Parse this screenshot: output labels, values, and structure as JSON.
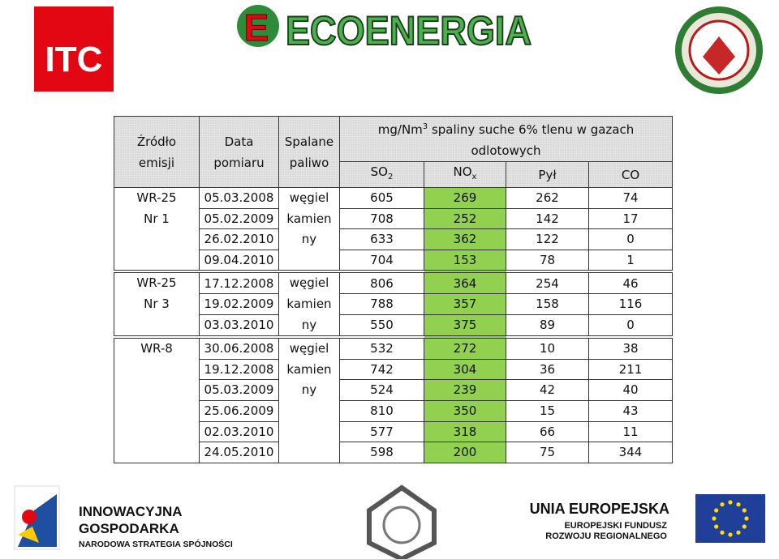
{
  "logos": {
    "itc": "ITC",
    "ecoenergia": "ECOENERGIA",
    "innowacyjna": [
      "INNOWACYJNA",
      "GOSPODARKA",
      "NARODOWA STRATEGIA SPÓJNOŚCI"
    ],
    "unia": [
      "UNIA EUROPEJSKA",
      "EUROPEJSKI FUNDUSZ",
      "ROZWOJU REGIONALNEGO"
    ]
  },
  "table": {
    "header": {
      "columns": [
        [
          "Źródło",
          "emisji"
        ],
        [
          "Data",
          "pomiaru"
        ],
        [
          "Spalane",
          "paliwo"
        ]
      ],
      "unit": {
        "text": "mg/Nm",
        "sup": "3",
        "rest": "spaliny suche 6% tlenu w gazach",
        "line2": "odlotowych"
      },
      "pollutants": [
        {
          "text": "SO",
          "sub": "2"
        },
        {
          "text": "NO",
          "sub": "x"
        },
        {
          "text": "Pył"
        },
        {
          "text": "CO"
        }
      ]
    },
    "groups": [
      {
        "source": [
          "WR-25",
          "Nr 1"
        ],
        "fuel": [
          "węgiel",
          "kamien",
          "ny"
        ],
        "rows": [
          {
            "date": "05.03.2008",
            "values": [
              605,
              269,
              262,
              74
            ]
          },
          {
            "date": "05.02.2009",
            "values": [
              708,
              252,
              142,
              17
            ]
          },
          {
            "date": "26.02.2010",
            "values": [
              633,
              362,
              122,
              0
            ]
          },
          {
            "date": "09.04.2010",
            "values": [
              704,
              153,
              78,
              1
            ]
          }
        ]
      },
      {
        "source": [
          "WR-25",
          "Nr 3"
        ],
        "fuel": [
          "węgiel",
          "kamien",
          "ny"
        ],
        "rows": [
          {
            "date": "17.12.2008",
            "values": [
              806,
              364,
              254,
              46
            ]
          },
          {
            "date": "19.02.2009",
            "values": [
              788,
              357,
              158,
              116
            ]
          },
          {
            "date": "03.03.2010",
            "values": [
              550,
              375,
              89,
              0
            ]
          }
        ]
      },
      {
        "source": [
          "WR-8"
        ],
        "fuel": [
          "węgiel",
          "kamien",
          "ny"
        ],
        "rows": [
          {
            "date": "30.06.2008",
            "values": [
              532,
              272,
              10,
              38
            ]
          },
          {
            "date": "19.12.2008",
            "values": [
              742,
              304,
              36,
              211
            ]
          },
          {
            "date": "05.03.2009",
            "values": [
              524,
              239,
              42,
              40
            ]
          },
          {
            "date": "25.06.2009",
            "values": [
              810,
              350,
              15,
              43
            ]
          },
          {
            "date": "02.03.2010",
            "values": [
              577,
              318,
              66,
              11
            ]
          },
          {
            "date": "24.05.2010",
            "values": [
              598,
              200,
              75,
              344
            ]
          }
        ]
      }
    ]
  }
}
